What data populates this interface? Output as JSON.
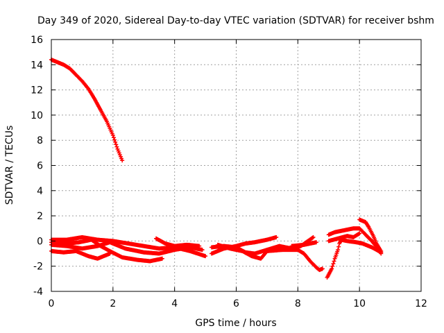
{
  "chart_data": {
    "type": "scatter",
    "title": "Day 349 of 2020, Sidereal Day-to-day VTEC variation (SDTVAR) for receiver bshm",
    "xlabel": "GPS time / hours",
    "ylabel": "SDTVAR / TECUs",
    "xlim": [
      0,
      12
    ],
    "ylim": [
      -4,
      16
    ],
    "xticks": [
      0,
      2,
      4,
      6,
      8,
      10,
      12
    ],
    "yticks": [
      -4,
      -2,
      0,
      2,
      4,
      6,
      8,
      10,
      12,
      14,
      16
    ],
    "grid": true,
    "marker": "plus",
    "color": "#ff0000",
    "series": [
      {
        "name": "s1",
        "points": [
          [
            0.0,
            14.4
          ],
          [
            0.2,
            14.2
          ],
          [
            0.4,
            14.0
          ],
          [
            0.6,
            13.7
          ],
          [
            0.8,
            13.2
          ],
          [
            1.0,
            12.7
          ],
          [
            1.2,
            12.1
          ],
          [
            1.4,
            11.3
          ],
          [
            1.6,
            10.4
          ],
          [
            1.8,
            9.5
          ],
          [
            2.0,
            8.4
          ],
          [
            2.15,
            7.3
          ],
          [
            2.3,
            6.4
          ]
        ]
      },
      {
        "name": "s2",
        "points": [
          [
            0.0,
            0.1
          ],
          [
            0.5,
            0.1
          ],
          [
            1.0,
            0.3
          ],
          [
            1.5,
            0.1
          ],
          [
            2.0,
            0.0
          ],
          [
            2.5,
            -0.2
          ],
          [
            3.0,
            -0.4
          ],
          [
            3.5,
            -0.6
          ],
          [
            4.0,
            -0.5
          ],
          [
            4.5,
            -0.8
          ],
          [
            5.0,
            -1.2
          ]
        ]
      },
      {
        "name": "s3",
        "points": [
          [
            0.0,
            -0.3
          ],
          [
            0.5,
            -0.4
          ],
          [
            1.0,
            -0.6
          ],
          [
            1.5,
            -0.4
          ],
          [
            1.9,
            -0.1
          ],
          [
            2.4,
            -0.6
          ],
          [
            3.0,
            -0.9
          ],
          [
            3.5,
            -1.0
          ],
          [
            4.0,
            -0.7
          ],
          [
            4.5,
            -0.5
          ],
          [
            4.9,
            -0.7
          ]
        ]
      },
      {
        "name": "s4",
        "points": [
          [
            0.0,
            -0.8
          ],
          [
            0.4,
            -0.9
          ],
          [
            0.8,
            -0.8
          ],
          [
            1.2,
            -1.2
          ],
          [
            1.5,
            -1.4
          ],
          [
            1.9,
            -1.0
          ]
        ]
      },
      {
        "name": "s5",
        "points": [
          [
            0.0,
            -0.1
          ],
          [
            0.5,
            -0.2
          ],
          [
            0.9,
            -0.1
          ],
          [
            1.3,
            0.1
          ],
          [
            1.6,
            -0.4
          ],
          [
            1.9,
            -0.8
          ],
          [
            2.3,
            -1.3
          ],
          [
            2.8,
            -1.5
          ],
          [
            3.2,
            -1.6
          ],
          [
            3.6,
            -1.4
          ]
        ]
      },
      {
        "name": "s6",
        "points": [
          [
            3.4,
            0.2
          ],
          [
            3.7,
            -0.2
          ],
          [
            4.0,
            -0.4
          ],
          [
            4.4,
            -0.3
          ],
          [
            4.8,
            -0.4
          ]
        ]
      },
      {
        "name": "s7",
        "points": [
          [
            5.2,
            -1.0
          ],
          [
            5.6,
            -0.6
          ],
          [
            6.0,
            -0.4
          ],
          [
            6.3,
            -0.2
          ],
          [
            6.6,
            -0.1
          ],
          [
            7.0,
            0.1
          ],
          [
            7.3,
            0.3
          ]
        ]
      },
      {
        "name": "s8",
        "points": [
          [
            5.2,
            -0.5
          ],
          [
            5.6,
            -0.4
          ],
          [
            6.0,
            -0.5
          ],
          [
            6.3,
            -0.9
          ],
          [
            6.6,
            -1.0
          ],
          [
            7.0,
            -0.7
          ],
          [
            7.4,
            -0.4
          ],
          [
            7.8,
            -0.6
          ],
          [
            8.1,
            -0.4
          ],
          [
            8.5,
            0.3
          ]
        ]
      },
      {
        "name": "s9",
        "points": [
          [
            5.4,
            -0.3
          ],
          [
            5.8,
            -0.6
          ],
          [
            6.2,
            -0.8
          ],
          [
            6.5,
            -1.2
          ],
          [
            6.8,
            -1.4
          ],
          [
            7.0,
            -0.8
          ],
          [
            7.5,
            -0.7
          ],
          [
            8.0,
            -0.7
          ],
          [
            8.2,
            -1.0
          ],
          [
            8.4,
            -1.6
          ],
          [
            8.6,
            -2.1
          ],
          [
            8.7,
            -2.3
          ],
          [
            8.8,
            -2.2
          ]
        ]
      },
      {
        "name": "s10",
        "points": [
          [
            7.8,
            -0.4
          ],
          [
            8.2,
            -0.3
          ],
          [
            8.6,
            -0.1
          ]
        ]
      },
      {
        "name": "s11",
        "points": [
          [
            9.0,
            0.5
          ],
          [
            9.2,
            0.7
          ],
          [
            9.4,
            0.8
          ],
          [
            9.6,
            0.9
          ],
          [
            9.8,
            1.0
          ],
          [
            10.0,
            1.0
          ],
          [
            10.2,
            0.5
          ],
          [
            10.4,
            0.0
          ],
          [
            10.6,
            -0.6
          ],
          [
            10.7,
            -1.0
          ]
        ]
      },
      {
        "name": "s12",
        "points": [
          [
            8.95,
            -2.9
          ],
          [
            9.1,
            -2.2
          ],
          [
            9.2,
            -1.4
          ],
          [
            9.3,
            -0.7
          ],
          [
            9.35,
            -0.2
          ],
          [
            9.4,
            0.1
          ],
          [
            9.6,
            0.0
          ],
          [
            9.9,
            -0.1
          ],
          [
            10.1,
            -0.2
          ],
          [
            10.4,
            -0.5
          ],
          [
            10.7,
            -0.9
          ]
        ]
      },
      {
        "name": "s13",
        "points": [
          [
            10.0,
            1.7
          ],
          [
            10.2,
            1.5
          ],
          [
            10.3,
            1.1
          ],
          [
            10.45,
            0.4
          ],
          [
            10.55,
            -0.2
          ],
          [
            10.7,
            -0.8
          ]
        ]
      },
      {
        "name": "s14",
        "points": [
          [
            9.0,
            0.0
          ],
          [
            9.3,
            0.2
          ],
          [
            9.6,
            0.4
          ],
          [
            9.8,
            0.3
          ],
          [
            10.0,
            0.6
          ]
        ]
      }
    ]
  }
}
